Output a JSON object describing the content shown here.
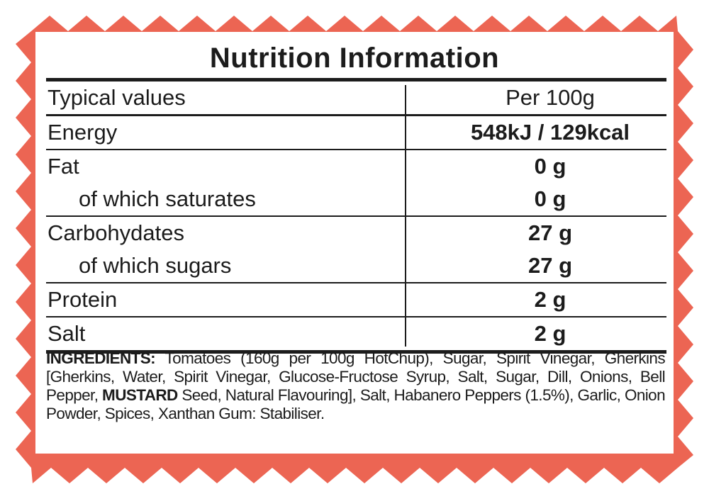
{
  "colors": {
    "border": "#ec6553",
    "text": "#1c1c1c",
    "panel": "#ffffff"
  },
  "title": "Nutrition Information",
  "header": {
    "label": "Typical values",
    "value": "Per 100g"
  },
  "rows": [
    {
      "label": "Energy",
      "value": "548kJ / 129kcal"
    },
    {
      "label": "Fat",
      "value": "0 g"
    },
    {
      "label": "of which saturates",
      "value": "0 g"
    },
    {
      "label": "Carbohydates",
      "value": "27 g"
    },
    {
      "label": "of which sugars",
      "value": "27 g"
    },
    {
      "label": "Protein",
      "value": "2 g"
    },
    {
      "label": "Salt",
      "value": "2 g"
    }
  ],
  "ingredients": {
    "heading": "INGREDIENTS:",
    "part1": " Tomatoes (160g per 100g HotChup), Sugar, Spirit Vinegar, Gherkins [Gherkins, Water, Spirit Vinegar, Glucose-Fructose Syrup, Salt, Sugar, Dill, Onions, Bell Pepper, ",
    "allergen": "MUSTARD",
    "part2": " Seed, Natural Flavouring], Salt, Habanero Peppers (1.5%), Garlic, Onion Powder, Spices, Xanthan Gum: Stabiliser."
  }
}
